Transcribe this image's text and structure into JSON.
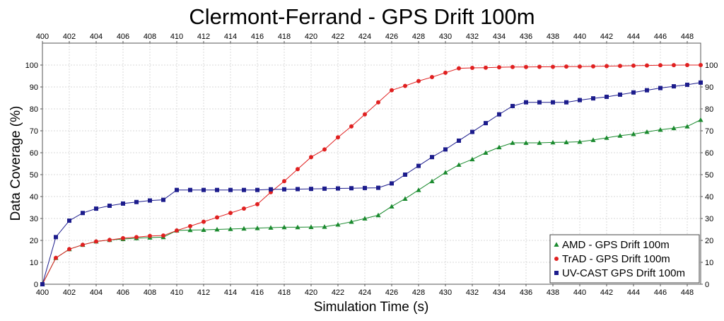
{
  "chart_data": {
    "type": "line",
    "title": "Clermont-Ferrand - GPS Drift 100m",
    "xlabel": "Simulation Time (s)",
    "ylabel": "Data Coverage (%)",
    "xlim": [
      400,
      449
    ],
    "ylim": [
      0,
      110
    ],
    "xticks": [
      400,
      402,
      404,
      406,
      408,
      410,
      412,
      414,
      416,
      418,
      420,
      422,
      424,
      426,
      428,
      430,
      432,
      434,
      436,
      438,
      440,
      442,
      444,
      446,
      448
    ],
    "yticks": [
      0,
      10,
      20,
      30,
      40,
      50,
      60,
      70,
      80,
      90,
      100
    ],
    "grid": true,
    "legend_position": "bottom-right",
    "x": [
      400,
      401,
      402,
      403,
      404,
      405,
      406,
      407,
      408,
      409,
      410,
      411,
      412,
      413,
      414,
      415,
      416,
      417,
      418,
      419,
      420,
      421,
      422,
      423,
      424,
      425,
      426,
      427,
      428,
      429,
      430,
      431,
      432,
      433,
      434,
      435,
      436,
      437,
      438,
      439,
      440,
      441,
      442,
      443,
      444,
      445,
      446,
      447,
      448,
      449
    ],
    "series": [
      {
        "name": "AMD - GPS Drift 100m",
        "color": "#1a8a2e",
        "marker": "triangle",
        "values": [
          0,
          12,
          16,
          18,
          19.5,
          20.2,
          20.6,
          21,
          21.3,
          21.5,
          24.5,
          24.7,
          24.8,
          25,
          25.2,
          25.4,
          25.6,
          25.8,
          26,
          26,
          26.1,
          26.2,
          27.2,
          28.5,
          30,
          31.5,
          35.5,
          39,
          43,
          47,
          51,
          54.5,
          57,
          60,
          62.5,
          64.5,
          64.5,
          64.5,
          64.7,
          64.8,
          65,
          65.8,
          66.8,
          67.8,
          68.5,
          69.5,
          70.5,
          71.2,
          72,
          75
        ]
      },
      {
        "name": "TrAD - GPS Drift 100m",
        "color": "#e02020",
        "marker": "circle",
        "values": [
          0,
          12,
          16,
          18,
          19.5,
          20.2,
          21,
          21.5,
          22,
          22.2,
          24.5,
          26.5,
          28.5,
          30.5,
          32.5,
          34.5,
          36.5,
          42,
          47,
          52.5,
          58,
          61.5,
          67,
          72,
          77.5,
          83,
          88.5,
          90.5,
          92.7,
          94.5,
          96.5,
          98.5,
          98.7,
          98.8,
          99,
          99.1,
          99.1,
          99.2,
          99.2,
          99.3,
          99.3,
          99.4,
          99.5,
          99.6,
          99.7,
          99.8,
          99.9,
          99.95,
          100,
          100
        ]
      },
      {
        "name": "UV-CAST GPS Drift 100m",
        "color": "#1c1c8c",
        "marker": "square",
        "values": [
          0,
          21.5,
          29,
          32.5,
          34.5,
          35.8,
          36.8,
          37.5,
          38.2,
          38.5,
          43,
          43,
          43,
          43,
          43,
          43,
          43,
          43.3,
          43.3,
          43.4,
          43.5,
          43.6,
          43.7,
          43.8,
          43.9,
          44,
          46,
          50,
          54,
          58,
          61.5,
          65.5,
          69.5,
          73.5,
          77.5,
          81.3,
          83,
          83,
          83,
          83,
          84,
          84.8,
          85.5,
          86.5,
          87.5,
          88.5,
          89.5,
          90.3,
          91,
          92
        ]
      }
    ]
  }
}
